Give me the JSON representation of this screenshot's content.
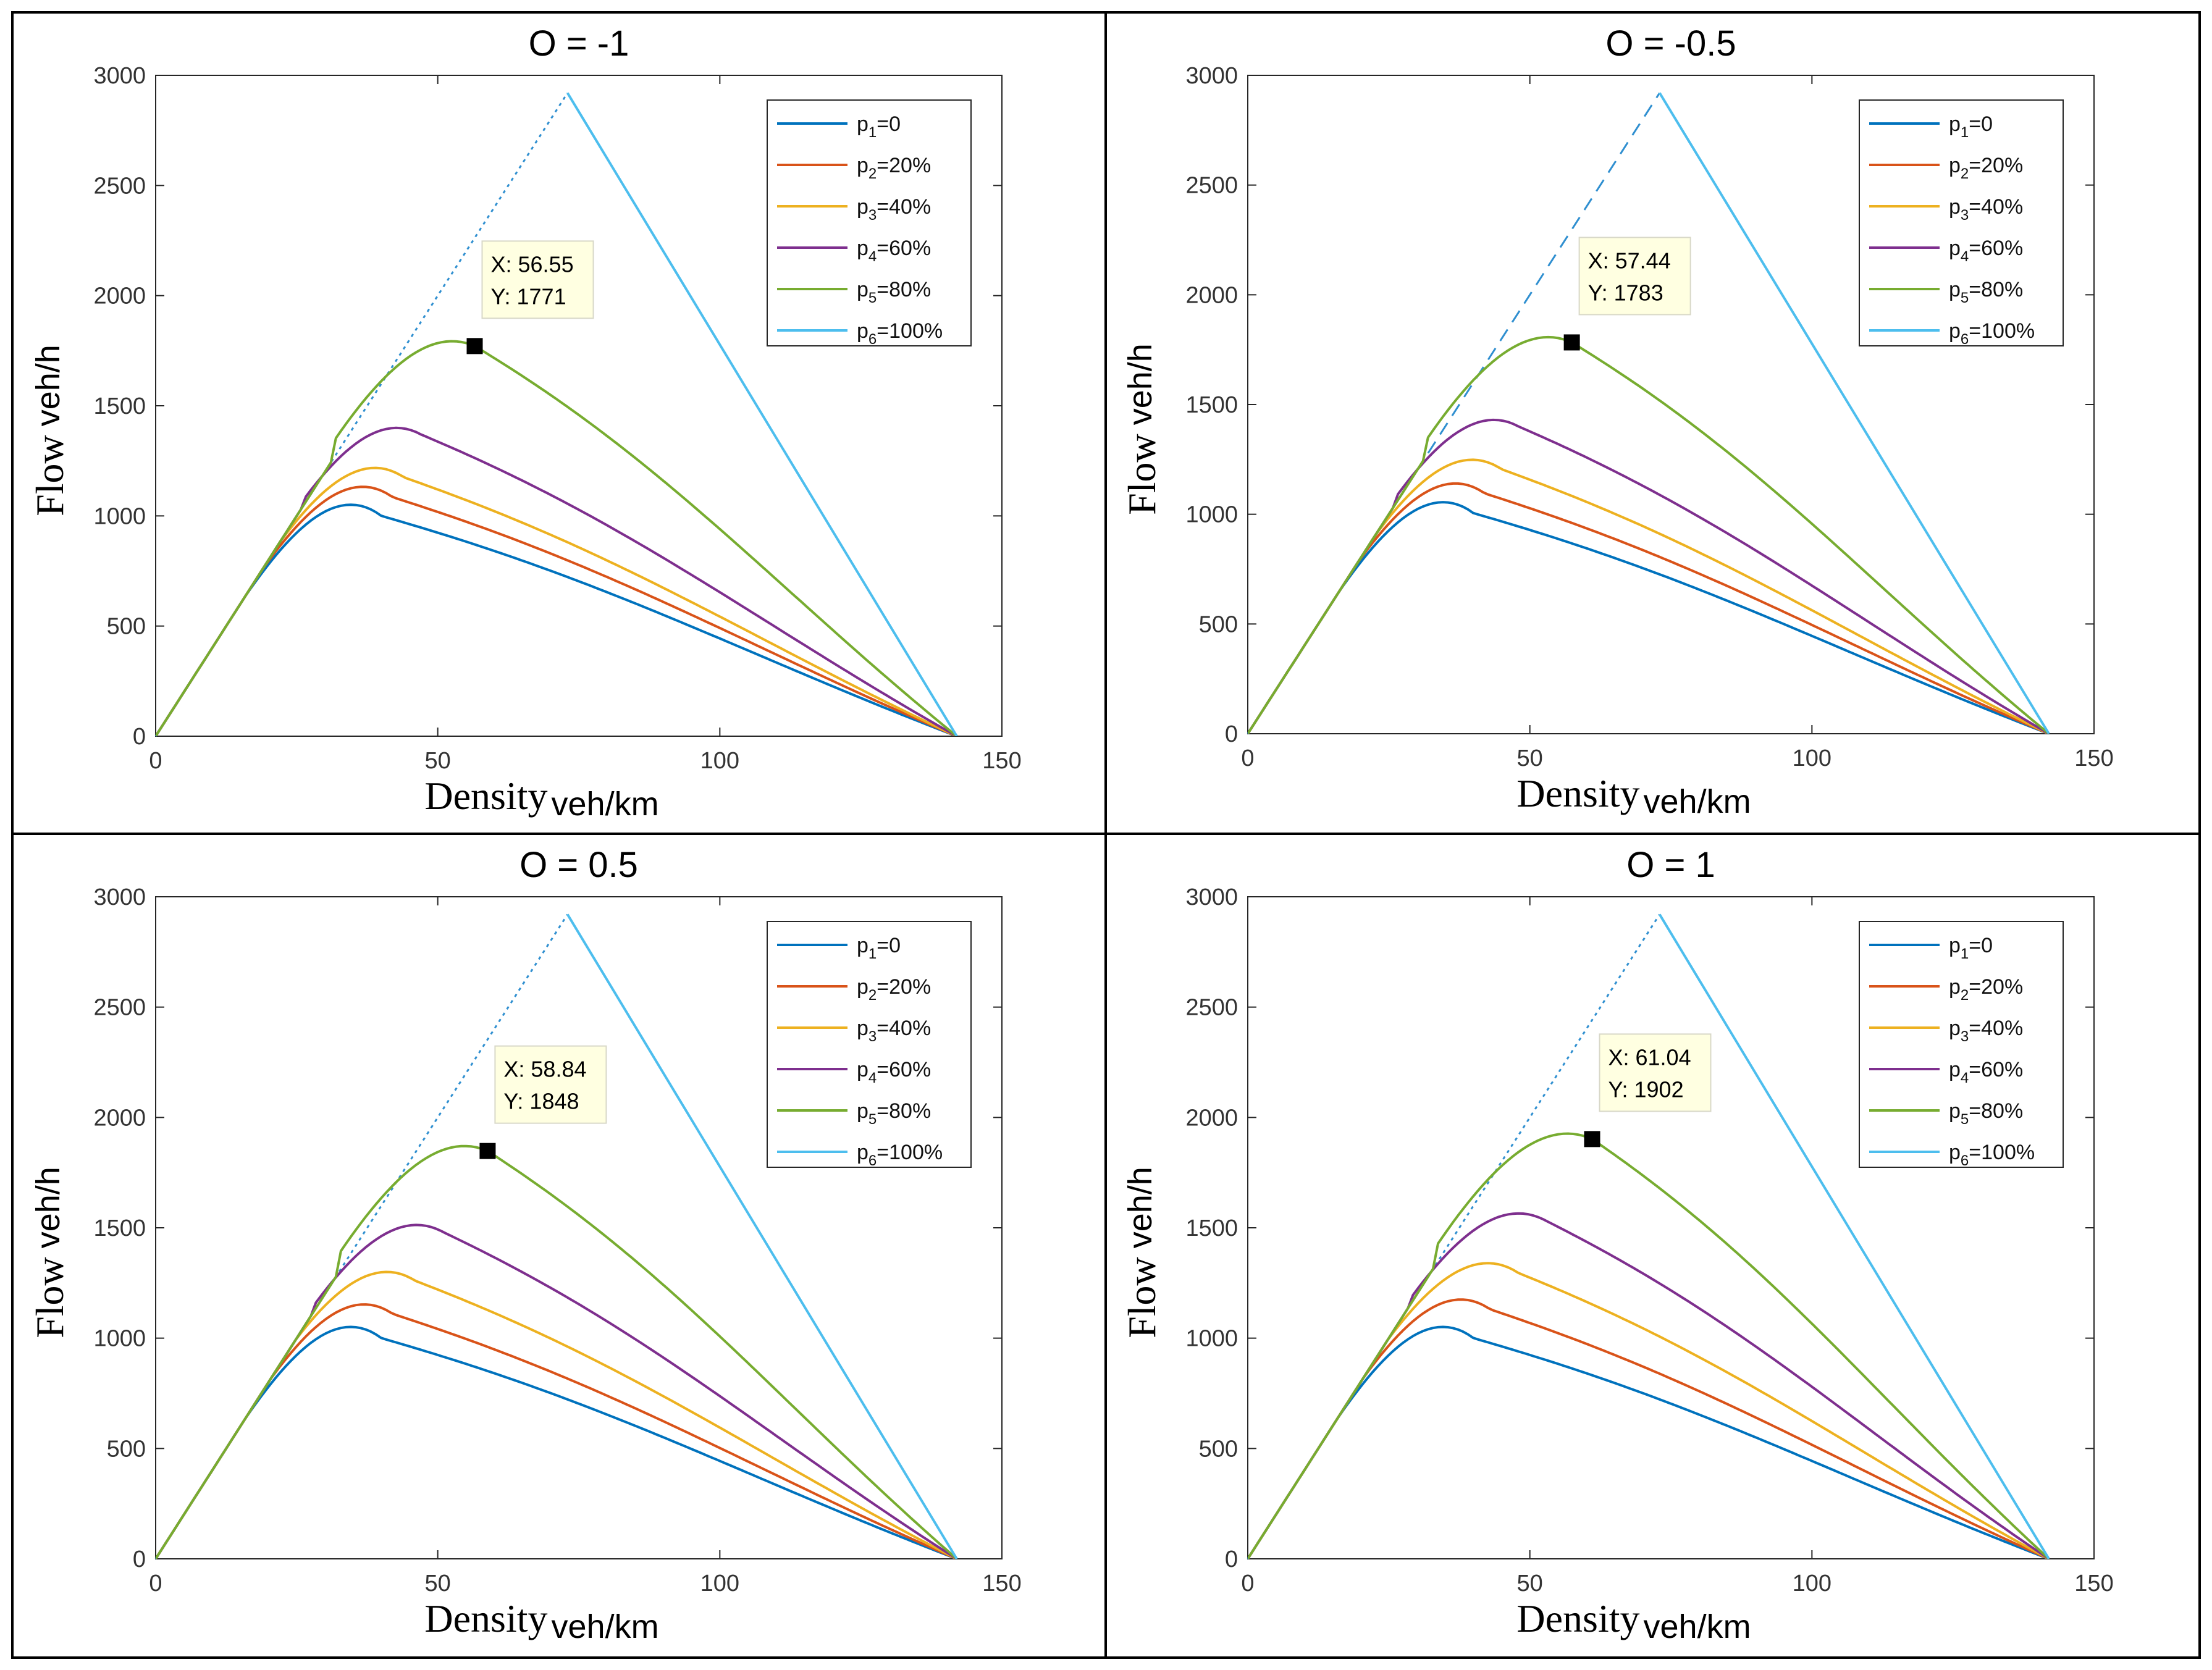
{
  "chart_data": [
    {
      "type": "line",
      "title": "O = -1",
      "xlabel": "Density",
      "xlabel_unit": "veh/km",
      "ylabel": "Flow",
      "ylabel_unit": "veh/h",
      "xlim": [
        0,
        150
      ],
      "ylim": [
        0,
        3000
      ],
      "xticks": [
        0,
        50,
        100,
        150
      ],
      "yticks": [
        0,
        500,
        1000,
        1500,
        2000,
        2500,
        3000
      ],
      "reference_line_style": "dotted",
      "series": [
        {
          "name": "p1=0",
          "base": "p",
          "sub": "1",
          "rest": "=0",
          "color": "#0072BD",
          "peak_x": 40,
          "peak_y": 1000
        },
        {
          "name": "p2=20%",
          "base": "p",
          "sub": "2",
          "rest": "=20%",
          "color": "#D95319",
          "peak_x": 42,
          "peak_y": 1085
        },
        {
          "name": "p3=40%",
          "base": "p",
          "sub": "3",
          "rest": "=40%",
          "color": "#EDB120",
          "peak_x": 44,
          "peak_y": 1175
        },
        {
          "name": "p4=60%",
          "base": "p",
          "sub": "4",
          "rest": "=60%",
          "color": "#7E2F8E",
          "peak_x": 47,
          "peak_y": 1370
        },
        {
          "name": "p5=80%",
          "base": "p",
          "sub": "5",
          "rest": "=80%",
          "color": "#77AC30",
          "peak_x": 56.55,
          "peak_y": 1771
        },
        {
          "name": "p6=100%",
          "base": "p",
          "sub": "6",
          "rest": "=100%",
          "color": "#4DBEEE",
          "peak_x": 73,
          "peak_y": 2920
        }
      ],
      "datatip": {
        "x": 56.55,
        "y": 1771,
        "x_text": "X: 56.55",
        "y_text": "Y: 1771"
      }
    },
    {
      "type": "line",
      "title": "O = -0.5",
      "xlabel": "Density",
      "xlabel_unit": "veh/km",
      "ylabel": "Flow",
      "ylabel_unit": "veh/h",
      "xlim": [
        0,
        150
      ],
      "ylim": [
        0,
        3000
      ],
      "xticks": [
        0,
        50,
        100,
        150
      ],
      "yticks": [
        0,
        500,
        1000,
        1500,
        2000,
        2500,
        3000
      ],
      "reference_line_style": "dashed",
      "series": [
        {
          "name": "p1=0",
          "base": "p",
          "sub": "1",
          "rest": "=0",
          "color": "#0072BD",
          "peak_x": 40,
          "peak_y": 1005
        },
        {
          "name": "p2=20%",
          "base": "p",
          "sub": "2",
          "rest": "=20%",
          "color": "#D95319",
          "peak_x": 42,
          "peak_y": 1095
        },
        {
          "name": "p3=40%",
          "base": "p",
          "sub": "3",
          "rest": "=40%",
          "color": "#EDB120",
          "peak_x": 45,
          "peak_y": 1205
        },
        {
          "name": "p4=60%",
          "base": "p",
          "sub": "4",
          "rest": "=60%",
          "color": "#7E2F8E",
          "peak_x": 48,
          "peak_y": 1400
        },
        {
          "name": "p5=80%",
          "base": "p",
          "sub": "5",
          "rest": "=80%",
          "color": "#77AC30",
          "peak_x": 57.44,
          "peak_y": 1783
        },
        {
          "name": "p6=100%",
          "base": "p",
          "sub": "6",
          "rest": "=100%",
          "color": "#4DBEEE",
          "peak_x": 73,
          "peak_y": 2920
        }
      ],
      "datatip": {
        "x": 57.44,
        "y": 1783,
        "x_text": "X: 57.44",
        "y_text": "Y: 1783"
      }
    },
    {
      "type": "line",
      "title": "O = 0.5",
      "xlabel": "Density",
      "xlabel_unit": "veh/km",
      "ylabel": "Flow",
      "ylabel_unit": "veh/h",
      "xlim": [
        0,
        150
      ],
      "ylim": [
        0,
        3000
      ],
      "xticks": [
        0,
        50,
        100,
        150
      ],
      "yticks": [
        0,
        500,
        1000,
        1500,
        2000,
        2500,
        3000
      ],
      "reference_line_style": "dotted",
      "series": [
        {
          "name": "p1=0",
          "base": "p",
          "sub": "1",
          "rest": "=0",
          "color": "#0072BD",
          "peak_x": 40,
          "peak_y": 1000
        },
        {
          "name": "p2=20%",
          "base": "p",
          "sub": "2",
          "rest": "=20%",
          "color": "#D95319",
          "peak_x": 42,
          "peak_y": 1110
        },
        {
          "name": "p3=40%",
          "base": "p",
          "sub": "3",
          "rest": "=40%",
          "color": "#EDB120",
          "peak_x": 46,
          "peak_y": 1260
        },
        {
          "name": "p4=60%",
          "base": "p",
          "sub": "4",
          "rest": "=60%",
          "color": "#7E2F8E",
          "peak_x": 51,
          "peak_y": 1480
        },
        {
          "name": "p5=80%",
          "base": "p",
          "sub": "5",
          "rest": "=80%",
          "color": "#77AC30",
          "peak_x": 58.84,
          "peak_y": 1848
        },
        {
          "name": "p6=100%",
          "base": "p",
          "sub": "6",
          "rest": "=100%",
          "color": "#4DBEEE",
          "peak_x": 73,
          "peak_y": 2920
        }
      ],
      "datatip": {
        "x": 58.84,
        "y": 1848,
        "x_text": "X: 58.84",
        "y_text": "Y: 1848"
      }
    },
    {
      "type": "line",
      "title": "O = 1",
      "xlabel": "Density",
      "xlabel_unit": "veh/km",
      "ylabel": "Flow",
      "ylabel_unit": "veh/h",
      "xlim": [
        0,
        150
      ],
      "ylim": [
        0,
        3000
      ],
      "xticks": [
        0,
        50,
        100,
        150
      ],
      "yticks": [
        0,
        500,
        1000,
        1500,
        2000,
        2500,
        3000
      ],
      "reference_line_style": "dotted",
      "series": [
        {
          "name": "p1=0",
          "base": "p",
          "sub": "1",
          "rest": "=0",
          "color": "#0072BD",
          "peak_x": 40,
          "peak_y": 1000
        },
        {
          "name": "p2=20%",
          "base": "p",
          "sub": "2",
          "rest": "=20%",
          "color": "#D95319",
          "peak_x": 43,
          "peak_y": 1130
        },
        {
          "name": "p3=40%",
          "base": "p",
          "sub": "3",
          "rest": "=40%",
          "color": "#EDB120",
          "peak_x": 48,
          "peak_y": 1295
        },
        {
          "name": "p4=60%",
          "base": "p",
          "sub": "4",
          "rest": "=60%",
          "color": "#7E2F8E",
          "peak_x": 53,
          "peak_y": 1530
        },
        {
          "name": "p5=80%",
          "base": "p",
          "sub": "5",
          "rest": "=80%",
          "color": "#77AC30",
          "peak_x": 61.04,
          "peak_y": 1902
        },
        {
          "name": "p6=100%",
          "base": "p",
          "sub": "6",
          "rest": "=100%",
          "color": "#4DBEEE",
          "peak_x": 73,
          "peak_y": 2920
        }
      ],
      "datatip": {
        "x": 61.04,
        "y": 1902,
        "x_text": "X: 61.04",
        "y_text": "Y: 1902"
      }
    }
  ],
  "jam_density": 142
}
